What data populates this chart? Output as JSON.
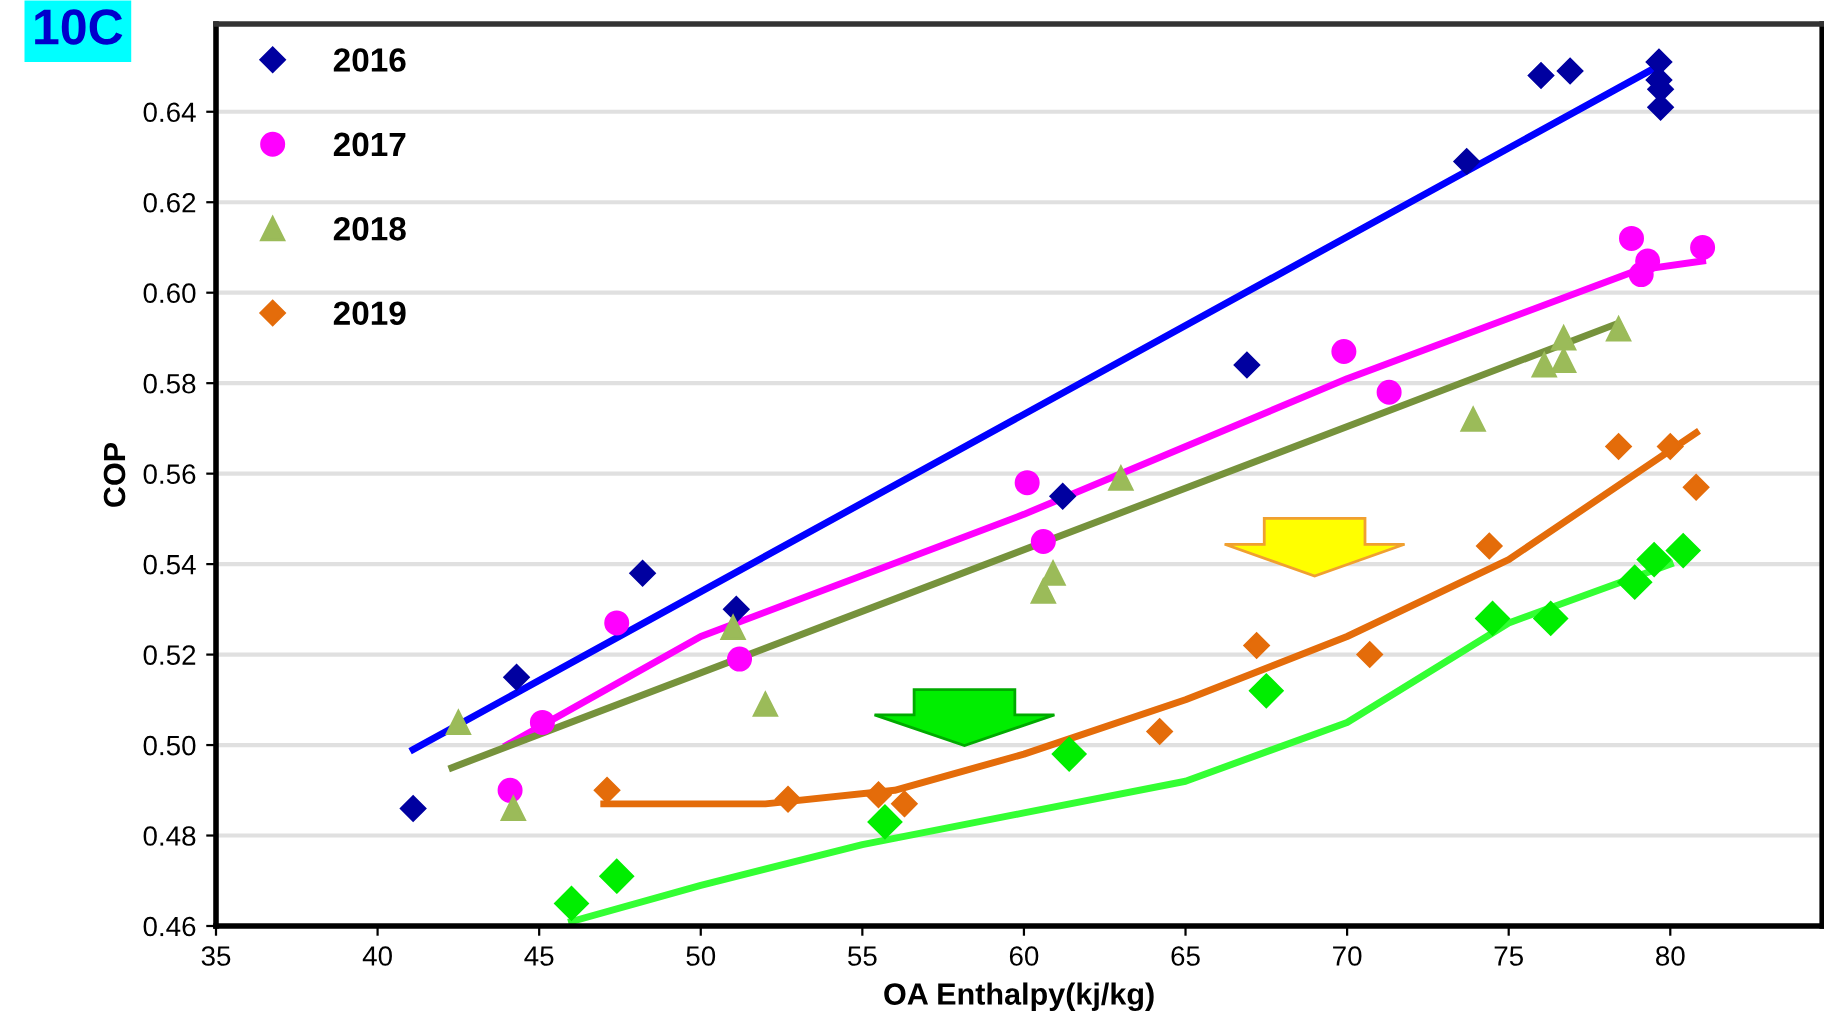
{
  "chart_data": {
    "type": "scatter",
    "title": "10C",
    "xlabel": "OA Enthalpy(kj/kg)",
    "ylabel": "COP",
    "xlim": [
      35,
      84.7
    ],
    "xticks": [
      35,
      40,
      45,
      50,
      55,
      60,
      65,
      70,
      75,
      80
    ],
    "ylim": [
      0.46,
      0.6594
    ],
    "yticks": [
      {
        "value": 0.46,
        "label": "0.46"
      },
      {
        "value": 0.48,
        "label": "0.48"
      },
      {
        "value": 0.5,
        "label": "0.50"
      },
      {
        "value": 0.52,
        "label": "0.52"
      },
      {
        "value": 0.54,
        "label": "0.54"
      },
      {
        "value": 0.56,
        "label": "0.56"
      },
      {
        "value": 0.58,
        "label": "0.58"
      },
      {
        "value": 0.6,
        "label": "0.60"
      },
      {
        "value": 0.62,
        "label": "0.62"
      },
      {
        "value": 0.64,
        "label": "0.64"
      }
    ],
    "grid": "y",
    "legend": "top left",
    "series": [
      {
        "name": "2016",
        "color": "#0000a0",
        "marker": "diamond",
        "x": [
          41.1,
          44.3,
          48.2,
          51.1,
          61.2,
          66.9,
          73.7,
          76.0,
          76.9,
          79.65,
          79.65,
          79.7,
          79.7
        ],
        "values": [
          0.486,
          0.515,
          0.538,
          0.53,
          0.555,
          0.584,
          0.629,
          0.648,
          0.649,
          0.651,
          0.647,
          0.645,
          0.641
        ]
      },
      {
        "name": "2017",
        "color": "#ff00ff",
        "marker": "circle",
        "x": [
          44.1,
          45.1,
          47.4,
          51.2,
          60.1,
          60.6,
          69.9,
          71.3,
          78.8,
          79.3,
          79.1,
          81.0
        ],
        "values": [
          0.49,
          0.505,
          0.527,
          0.519,
          0.558,
          0.545,
          0.587,
          0.578,
          0.612,
          0.607,
          0.604,
          0.61
        ]
      },
      {
        "name": "2018",
        "color": "#9bbb59",
        "marker": "triangle",
        "x": [
          42.5,
          44.2,
          51.0,
          52.0,
          60.6,
          60.9,
          63.0,
          73.9,
          76.1,
          76.7,
          76.7,
          78.4
        ],
        "values": [
          0.505,
          0.486,
          0.526,
          0.509,
          0.534,
          0.538,
          0.559,
          0.572,
          0.584,
          0.585,
          0.59,
          0.592
        ]
      },
      {
        "name": "2019",
        "color": "#e46c0a",
        "marker": "diamond",
        "x": [
          47.1,
          52.7,
          55.5,
          56.3,
          64.2,
          67.2,
          70.7,
          74.4,
          78.4,
          80.0,
          80.8
        ],
        "values": [
          0.49,
          0.488,
          0.489,
          0.487,
          0.503,
          0.522,
          0.52,
          0.544,
          0.566,
          0.566,
          0.557
        ]
      },
      {
        "color": "#00ee00",
        "marker": "diamond",
        "x": [
          46.0,
          47.4,
          55.7,
          61.4,
          67.5,
          74.5,
          76.3,
          78.9,
          79.5,
          80.4
        ],
        "values": [
          0.465,
          0.471,
          0.483,
          0.498,
          0.512,
          0.528,
          0.528,
          0.536,
          0.541,
          0.543
        ]
      },
      {
        "type": "line",
        "color": "#0000ff",
        "x": [
          41.1,
          79.6
        ],
        "values": [
          0.499,
          0.65
        ]
      },
      {
        "type": "line",
        "color": "#ff00ff",
        "x": [
          44.0,
          50.0,
          60.0,
          70.0,
          79.0,
          81.0
        ],
        "values": [
          0.5,
          0.524,
          0.551,
          0.581,
          0.605,
          0.607
        ]
      },
      {
        "type": "line",
        "color": "#76923c",
        "x": [
          42.3,
          78.3
        ],
        "values": [
          0.495,
          0.593
        ]
      },
      {
        "type": "line",
        "color": "#e46c0a",
        "x": [
          47.0,
          52.0,
          56.0,
          60.0,
          65.0,
          70.0,
          75.0,
          80.8
        ],
        "values": [
          0.487,
          0.487,
          0.49,
          0.498,
          0.51,
          0.524,
          0.541,
          0.569
        ]
      },
      {
        "type": "line",
        "color": "#33ff33",
        "x": [
          46.0,
          50.0,
          55.0,
          60.0,
          65.0,
          70.0,
          75.0,
          80.0
        ],
        "values": [
          0.461,
          0.469,
          0.478,
          0.485,
          0.492,
          0.505,
          0.527,
          0.54
        ]
      }
    ]
  }
}
